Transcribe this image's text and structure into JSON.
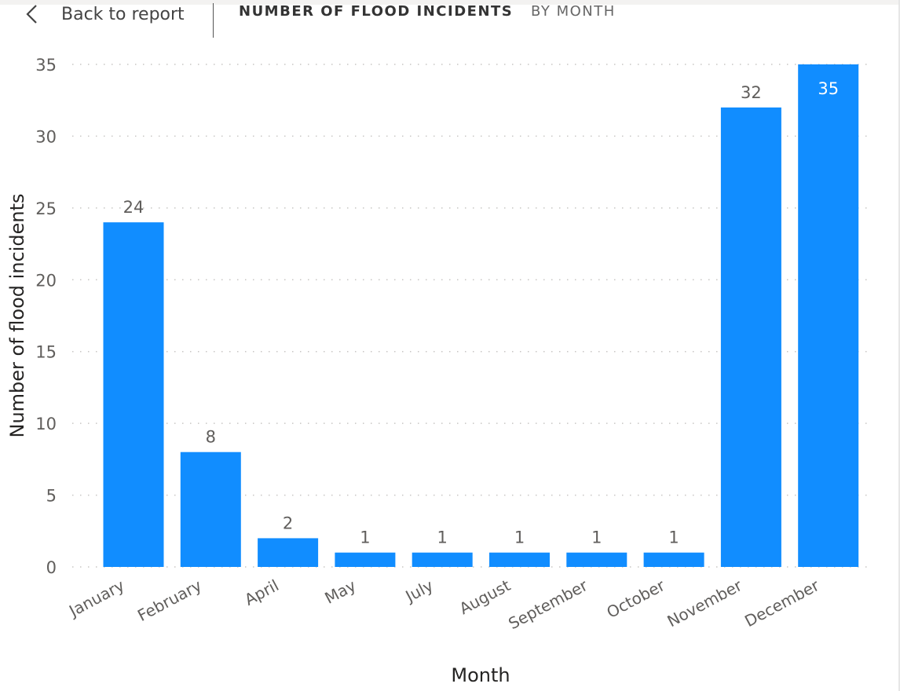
{
  "header": {
    "back_label": "Back to report",
    "title": "NUMBER OF FLOOD INCIDENTS",
    "subtitle": "BY MONTH"
  },
  "colors": {
    "bar": "#118DFF",
    "gridline": "#c8c6c4",
    "tick_text": "#605e5c",
    "axis_title": "#252423",
    "label_outside": "#605e5c",
    "label_inside": "#ffffff"
  },
  "chart_data": {
    "type": "bar",
    "categories": [
      "January",
      "February",
      "April",
      "May",
      "July",
      "August",
      "September",
      "October",
      "November",
      "December"
    ],
    "values": [
      24,
      8,
      2,
      1,
      1,
      1,
      1,
      1,
      32,
      35
    ],
    "xlabel": "Month",
    "ylabel": "Number of flood incidents",
    "ylim": [
      0,
      35
    ],
    "yticks": [
      0,
      5,
      10,
      15,
      20,
      25,
      30,
      35
    ],
    "grid": true,
    "data_labels": true
  }
}
